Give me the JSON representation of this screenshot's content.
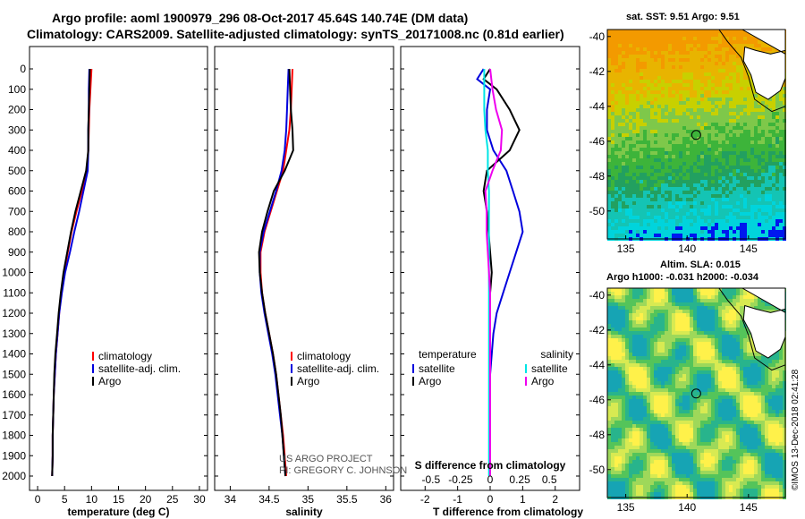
{
  "header": {
    "title_line1": "Argo profile: aoml 1900979_296 08-Oct-2017 45.64S 140.74E (DM data)",
    "title_line2": "Climatology: CARS2009. Satellite-adjusted climatology: synTS_20171008.nc (0.81d earlier)"
  },
  "maps": {
    "sst_label": "sat. SST: 9.51 Argo: 9.51",
    "sla_label1": "Altim. SLA: 0.015",
    "sla_label2": "Argo h1000: -0.031 h2000: -0.034",
    "lat_ticks": [
      -40,
      -42,
      -44,
      -46,
      -48,
      -50
    ],
    "lon_ticks": [
      135,
      140,
      145
    ],
    "float_position": {
      "lon": 140.74,
      "lat": -45.64
    }
  },
  "credit": "©IMOS 13-Dec-2018 02:41:28",
  "watermark": {
    "line1": "US ARGO PROJECT",
    "line2": "PI: GREGORY C. JOHNSON"
  },
  "colors": {
    "climatology": "#ff0000",
    "satellite": "#0000dd",
    "argo": "#000000",
    "sat_salinity": "#00e5e5",
    "argo_salinity": "#ee00ee"
  },
  "chart_data": [
    {
      "type": "line",
      "xlabel": "temperature (deg C)",
      "ylabel": "",
      "xlim": [
        -1.5,
        31.5
      ],
      "ylim": [
        2050,
        0
      ],
      "xticks": [
        0,
        5,
        10,
        15,
        20,
        25,
        30
      ],
      "yticks": [
        0,
        100,
        200,
        300,
        400,
        500,
        600,
        700,
        800,
        900,
        1000,
        1100,
        1200,
        1300,
        1400,
        1500,
        1600,
        1700,
        1800,
        1900,
        2000
      ],
      "legend": [
        "climatology",
        "satellite-adj. clim.",
        "Argo"
      ],
      "series": [
        {
          "name": "climatology",
          "color": "#ff0000",
          "depth": [
            0,
            100,
            200,
            300,
            400,
            500,
            600,
            700,
            800,
            900,
            1000,
            1100,
            1200,
            1300,
            1400,
            1500,
            1600,
            1700,
            1800,
            1900,
            2000
          ],
          "values": [
            10.0,
            9.8,
            9.6,
            9.5,
            9.4,
            9.2,
            8.2,
            7.2,
            6.3,
            5.6,
            4.9,
            4.4,
            4.0,
            3.7,
            3.4,
            3.2,
            3.0,
            2.9,
            2.8,
            2.8,
            2.7
          ]
        },
        {
          "name": "satellite-adj. clim.",
          "color": "#0000dd",
          "depth": [
            0,
            100,
            200,
            300,
            400,
            500,
            600,
            700,
            800,
            900,
            1000,
            1100,
            1200,
            1300,
            1400,
            1500,
            1600,
            1700,
            1800,
            1900,
            2000
          ],
          "values": [
            9.6,
            9.5,
            9.5,
            9.4,
            9.4,
            9.3,
            8.5,
            7.7,
            6.8,
            6.0,
            5.1,
            4.5,
            4.0,
            3.7,
            3.4,
            3.2,
            3.0,
            2.9,
            2.8,
            2.8,
            2.7
          ]
        },
        {
          "name": "Argo",
          "color": "#000000",
          "depth": [
            0,
            100,
            200,
            300,
            400,
            500,
            600,
            700,
            800,
            900,
            1000,
            1100,
            1200,
            1300,
            1400,
            1500,
            1600,
            1700,
            1800,
            1900,
            2000
          ],
          "values": [
            9.7,
            9.6,
            9.5,
            9.4,
            9.4,
            9.0,
            8.0,
            7.0,
            6.2,
            5.5,
            4.8,
            4.3,
            3.9,
            3.6,
            3.3,
            3.1,
            3.0,
            2.9,
            2.8,
            2.8,
            2.7
          ]
        }
      ]
    },
    {
      "type": "line",
      "xlabel": "salinity",
      "ylabel": "",
      "xlim": [
        33.8,
        36.1
      ],
      "ylim": [
        2050,
        0
      ],
      "xticks": [
        34,
        34.5,
        35,
        35.5,
        36
      ],
      "legend": [
        "climatology",
        "satellite-adj. clim.",
        "Argo"
      ],
      "series": [
        {
          "name": "climatology",
          "color": "#ff0000",
          "depth": [
            0,
            100,
            200,
            300,
            400,
            500,
            600,
            700,
            800,
            900,
            1000,
            1100,
            1200,
            1300,
            1400,
            1500,
            1600,
            1700,
            1800,
            1900,
            2000
          ],
          "values": [
            34.8,
            34.79,
            34.78,
            34.76,
            34.72,
            34.68,
            34.6,
            34.52,
            34.44,
            34.39,
            34.39,
            34.41,
            34.45,
            34.5,
            34.55,
            34.59,
            34.62,
            34.65,
            34.68,
            34.7,
            34.72
          ]
        },
        {
          "name": "satellite-adj. clim.",
          "color": "#0000dd",
          "depth": [
            0,
            100,
            200,
            300,
            400,
            500,
            600,
            700,
            800,
            900,
            1000,
            1100,
            1200,
            1300,
            1400,
            1500,
            1600,
            1700,
            1800,
            1900,
            2000
          ],
          "values": [
            34.75,
            34.74,
            34.73,
            34.72,
            34.7,
            34.66,
            34.59,
            34.51,
            34.43,
            34.38,
            34.38,
            34.4,
            34.44,
            34.49,
            34.54,
            34.58,
            34.61,
            34.64,
            34.67,
            34.69,
            34.71
          ]
        },
        {
          "name": "Argo",
          "color": "#000000",
          "depth": [
            0,
            100,
            200,
            300,
            400,
            500,
            600,
            700,
            800,
            900,
            1000,
            1100,
            1200,
            1300,
            1400,
            1500,
            1600,
            1700,
            1800,
            1900,
            2000
          ],
          "values": [
            34.76,
            34.77,
            34.78,
            34.8,
            34.81,
            34.7,
            34.56,
            34.48,
            34.41,
            34.37,
            34.38,
            34.41,
            34.45,
            34.5,
            34.55,
            34.59,
            34.62,
            34.65,
            34.67,
            34.69,
            34.71
          ]
        }
      ]
    },
    {
      "type": "line",
      "xlabel": "T difference from climatology",
      "xlabel_top": "S difference from climatology",
      "ylabel": "",
      "xlim": [
        -2.75,
        2.75
      ],
      "ylim": [
        2050,
        0
      ],
      "xticks": [
        -2,
        -1,
        0,
        1,
        2
      ],
      "xticks_top": [
        -0.5,
        -0.25,
        0,
        0.25,
        0.5
      ],
      "legend_left_title": "temperature",
      "legend_right_title": "salinity",
      "legend": [
        "satellite",
        "Argo",
        "satellite",
        "Argo"
      ],
      "series": [
        {
          "name": "temperature satellite",
          "color": "#0000dd",
          "depth": [
            0,
            50,
            100,
            200,
            300,
            400,
            500,
            600,
            700,
            800,
            900,
            1000,
            1100,
            1200,
            1300,
            1400,
            1500,
            1600,
            1700,
            1800,
            1900,
            2000
          ],
          "values": [
            -0.2,
            -0.4,
            0.0,
            -0.1,
            -0.1,
            0.1,
            0.5,
            0.7,
            0.9,
            1.0,
            0.8,
            0.6,
            0.4,
            0.2,
            0.1,
            0.05,
            0.0,
            0.0,
            0.0,
            0.0,
            0.0,
            0.0
          ]
        },
        {
          "name": "temperature Argo",
          "color": "#000000",
          "depth": [
            0,
            50,
            100,
            200,
            300,
            400,
            500,
            600,
            700,
            800,
            900,
            1000,
            1100,
            1200,
            1300,
            1400,
            1500,
            1600,
            1700,
            1800,
            1900,
            2000
          ],
          "values": [
            0.0,
            -0.2,
            0.2,
            0.6,
            0.9,
            0.6,
            -0.1,
            -0.2,
            -0.1,
            -0.05,
            0.0,
            0.05,
            0.0,
            0.0,
            0.0,
            0.0,
            0.0,
            0.0,
            0.0,
            0.0,
            0.0,
            0.0
          ]
        },
        {
          "name": "salinity satellite",
          "color": "#00e5e5",
          "depth": [
            0,
            100,
            200,
            300,
            400,
            500,
            600,
            700,
            800,
            900,
            1000,
            1100,
            1200,
            1300,
            1400,
            1500,
            1600,
            1700,
            1800,
            1900,
            2000
          ],
          "values": [
            -0.05,
            -0.05,
            -0.05,
            -0.04,
            -0.02,
            -0.02,
            -0.01,
            -0.01,
            -0.01,
            -0.01,
            -0.01,
            -0.01,
            -0.01,
            -0.01,
            -0.01,
            -0.01,
            -0.01,
            -0.01,
            -0.01,
            -0.01,
            -0.01
          ]
        },
        {
          "name": "salinity Argo",
          "color": "#ee00ee",
          "depth": [
            0,
            100,
            200,
            300,
            400,
            500,
            600,
            700,
            800,
            900,
            1000,
            1100,
            1200,
            1300,
            1400,
            1500,
            1600,
            1700,
            1800,
            1900,
            2000
          ],
          "values": [
            0.0,
            0.02,
            0.05,
            0.1,
            0.09,
            0.02,
            -0.04,
            -0.03,
            -0.03,
            -0.02,
            -0.01,
            0.0,
            0.0,
            0.0,
            0.0,
            0.0,
            0.0,
            0.0,
            0.0,
            0.0,
            0.0
          ]
        }
      ]
    }
  ]
}
